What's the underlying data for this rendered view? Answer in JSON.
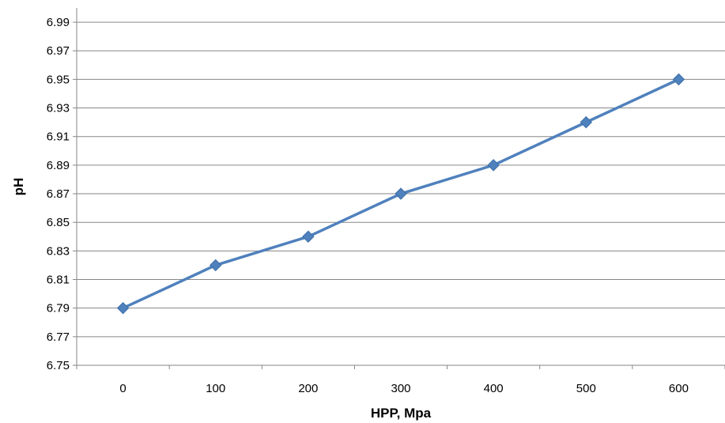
{
  "chart_data": {
    "type": "line",
    "title": "",
    "xlabel": "HPP, Mpa",
    "ylabel": "pH",
    "categories": [
      "0",
      "100",
      "200",
      "300",
      "400",
      "500",
      "600"
    ],
    "series": [
      {
        "values": [
          6.79,
          6.82,
          6.84,
          6.87,
          6.89,
          6.92,
          6.95
        ],
        "color": "#4F81BD",
        "marker": "diamond"
      }
    ],
    "ylim": [
      6.75,
      7.0
    ],
    "yticks": [
      "6.75",
      "6.77",
      "6.79",
      "6.81",
      "6.83",
      "6.85",
      "6.87",
      "6.89",
      "6.91",
      "6.93",
      "6.95",
      "6.97",
      "6.99"
    ],
    "grid": true,
    "legend": "none"
  }
}
